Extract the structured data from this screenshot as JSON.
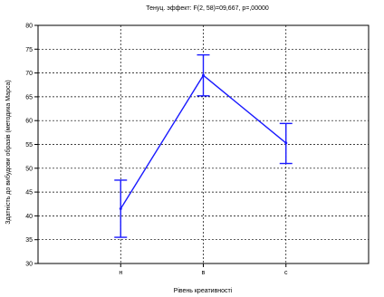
{
  "chart_data": {
    "type": "line",
    "title": "Тенуц. эффект: F(2, 58)=09,667, p=,00000",
    "xlabel": "Рівень креативності",
    "ylabel": "Здатність до вибудови образів (методика Марса)",
    "categories": [
      "н",
      "в",
      "с"
    ],
    "series": [
      {
        "values": [
          41.5,
          69.5,
          55.3
        ],
        "error_low": [
          35.5,
          65.2,
          51.0
        ],
        "error_high": [
          47.5,
          73.8,
          59.4
        ]
      }
    ],
    "ylim": [
      30,
      80
    ],
    "yticks": [
      30,
      35,
      40,
      45,
      50,
      55,
      60,
      65,
      70,
      75,
      80
    ],
    "grid": true,
    "colors": {
      "series": "#1a1aff"
    }
  }
}
